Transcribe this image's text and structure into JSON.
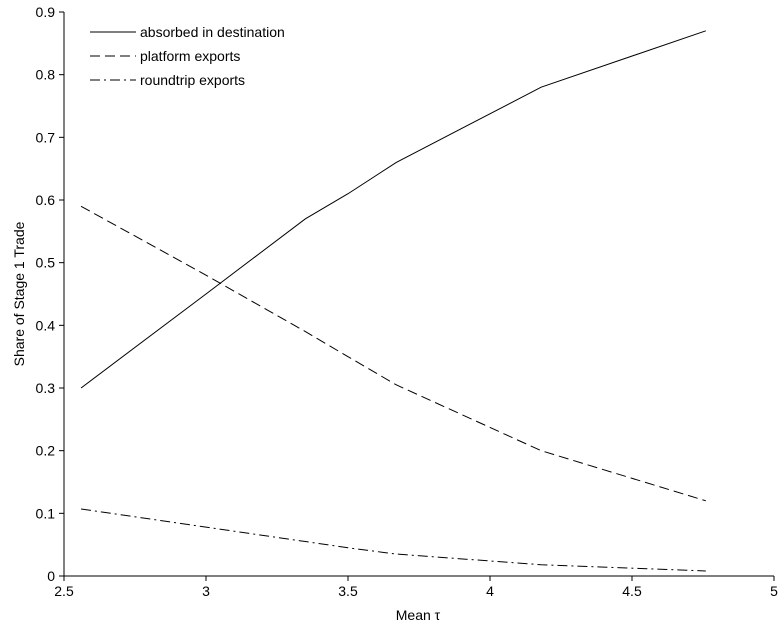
{
  "chart_data": {
    "type": "line",
    "x_label": "Mean τ",
    "y_label": "Share of Stage 1 Trade",
    "x": [
      2.56,
      3.0,
      3.35,
      3.5,
      3.67,
      4.18,
      4.76
    ],
    "series": [
      {
        "name": "absorbed in destination",
        "color": "#000000",
        "dash": "solid",
        "values": [
          0.3,
          0.45,
          0.57,
          0.61,
          0.66,
          0.78,
          0.87
        ]
      },
      {
        "name": "platform exports",
        "color": "#000000",
        "dash": "dashed",
        "values": [
          0.59,
          0.48,
          0.39,
          0.35,
          0.305,
          0.2,
          0.12
        ]
      },
      {
        "name": "roundtrip exports",
        "color": "#000000",
        "dash": "dashdot",
        "values": [
          0.107,
          0.078,
          0.055,
          0.045,
          0.035,
          0.018,
          0.008
        ]
      }
    ],
    "xlim": [
      2.5,
      5
    ],
    "xticks": [
      2.5,
      3,
      3.5,
      4,
      4.5,
      5
    ],
    "ylim": [
      0,
      0.9
    ],
    "yticks": [
      0,
      0.1,
      0.2,
      0.3,
      0.4,
      0.5,
      0.6,
      0.7,
      0.8,
      0.9
    ],
    "legend": "upper-left",
    "grid": false
  }
}
